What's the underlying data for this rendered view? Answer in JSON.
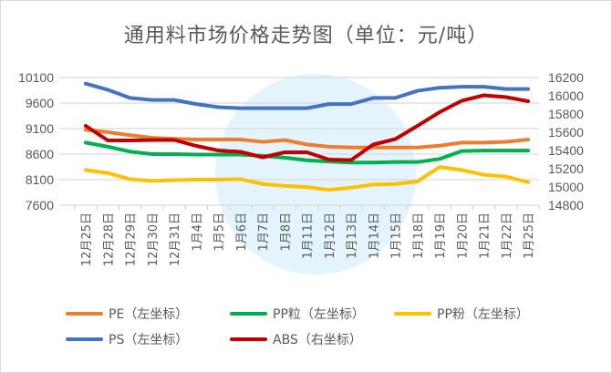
{
  "chart_data": {
    "type": "line",
    "title": "通用料市场价格走势图（单位：元/吨）",
    "categories": [
      "12月25日",
      "12月28日",
      "12月29日",
      "12月30日",
      "12月31日",
      "1月4日",
      "1月5日",
      "1月6日",
      "1月7日",
      "1月8日",
      "1月11日",
      "1月12日",
      "1月13日",
      "1月14日",
      "1月15日",
      "1月18日",
      "1月19日",
      "1月20日",
      "1月21日",
      "1月22日",
      "1月25日"
    ],
    "left_axis": {
      "ylim": [
        7600,
        10100
      ],
      "ticks": [
        7600,
        8100,
        8600,
        9100,
        9600,
        10100
      ]
    },
    "right_axis": {
      "ylim": [
        14800,
        16200
      ],
      "ticks": [
        14800,
        15000,
        15200,
        15400,
        15600,
        15800,
        16000,
        16200
      ]
    },
    "grid": true,
    "legend_position": "bottom",
    "series": [
      {
        "name": "PE（左坐标）",
        "axis": "left",
        "color": "#ED7D31",
        "values": [
          9075,
          9030,
          8970,
          8920,
          8900,
          8885,
          8885,
          8885,
          8840,
          8875,
          8790,
          8745,
          8730,
          8730,
          8730,
          8730,
          8765,
          8825,
          8825,
          8840,
          8885
        ]
      },
      {
        "name": "PP粒（左坐标）",
        "axis": "left",
        "color": "#00B050",
        "values": [
          8825,
          8745,
          8650,
          8600,
          8600,
          8590,
          8590,
          8590,
          8565,
          8530,
          8480,
          8455,
          8435,
          8435,
          8445,
          8445,
          8505,
          8660,
          8670,
          8670,
          8670
        ]
      },
      {
        "name": "PP粉（左坐标）",
        "axis": "left",
        "color": "#FFC000",
        "values": [
          8290,
          8230,
          8110,
          8075,
          8090,
          8100,
          8100,
          8110,
          8015,
          7980,
          7955,
          7900,
          7945,
          8005,
          8015,
          8065,
          8350,
          8290,
          8195,
          8160,
          8050
        ]
      },
      {
        "name": "PS（左坐标）",
        "axis": "left",
        "color": "#4472C4",
        "values": [
          9980,
          9860,
          9700,
          9660,
          9660,
          9580,
          9520,
          9500,
          9500,
          9500,
          9500,
          9580,
          9580,
          9700,
          9700,
          9840,
          9900,
          9920,
          9920,
          9875,
          9875
        ]
      },
      {
        "name": "ABS（右坐标）",
        "axis": "right",
        "color": "#C00000",
        "values": [
          15670,
          15510,
          15510,
          15515,
          15515,
          15450,
          15400,
          15385,
          15325,
          15380,
          15380,
          15300,
          15295,
          15465,
          15525,
          15670,
          15820,
          15945,
          16005,
          15985,
          15940
        ]
      }
    ]
  }
}
